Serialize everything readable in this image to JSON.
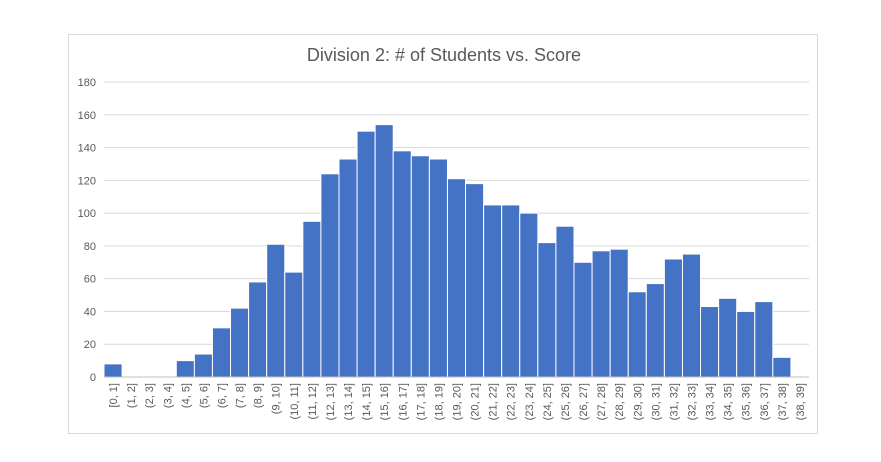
{
  "chart_data": {
    "type": "bar",
    "title": "Division 2: # of Students vs. Score",
    "xlabel": "",
    "ylabel": "",
    "ylim": [
      0,
      180
    ],
    "yticks": [
      0,
      20,
      40,
      60,
      80,
      100,
      120,
      140,
      160,
      180
    ],
    "grid": true,
    "legend": "none",
    "bar_color": "#4472C4",
    "categories": [
      "[0, 1]",
      "(1, 2]",
      "(2, 3]",
      "(3, 4]",
      "(4, 5]",
      "(5, 6]",
      "(6, 7]",
      "(7, 8]",
      "(8, 9]",
      "(9, 10]",
      "(10, 11]",
      "(11, 12]",
      "(12, 13]",
      "(13, 14]",
      "(14, 15]",
      "(15, 16]",
      "(16, 17]",
      "(17, 18]",
      "(18, 19]",
      "(19, 20]",
      "(20, 21]",
      "(21, 22]",
      "(22, 23]",
      "(23, 24]",
      "(24, 25]",
      "(25, 26]",
      "(26, 27]",
      "(27, 28]",
      "(28, 29]",
      "(29, 30]",
      "(30, 31]",
      "(31, 32]",
      "(32, 33]",
      "(33, 34]",
      "(34, 35]",
      "(35, 36]",
      "(36, 37]",
      "(37, 38]",
      "(38, 39]"
    ],
    "values": [
      8,
      0,
      0,
      0,
      10,
      14,
      30,
      42,
      58,
      81,
      64,
      95,
      124,
      133,
      150,
      154,
      138,
      135,
      133,
      121,
      118,
      105,
      105,
      100,
      82,
      92,
      70,
      77,
      78,
      52,
      57,
      72,
      75,
      43,
      48,
      40,
      46,
      12,
      0
    ]
  }
}
